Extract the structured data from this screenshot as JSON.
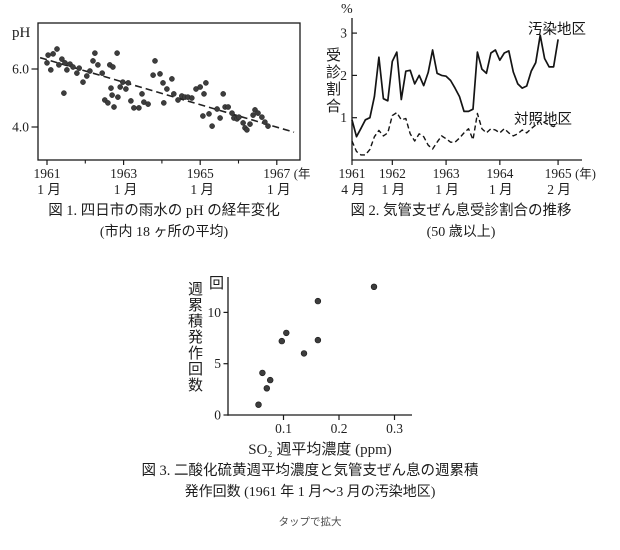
{
  "page": {
    "background": "#ffffff",
    "tap_hint": "タップで拡大"
  },
  "colors": {
    "ink": "#1a1a1a",
    "dot": "#3d3d3d",
    "axis": "#111111"
  },
  "chart_data": [
    {
      "id": "fig1",
      "type": "scatter",
      "title": "図 1.  四日市の雨水の pH の経年変化",
      "subtitle": "(市内 18 ヶ所の平均)",
      "ylabel": "pH",
      "frame": "box",
      "xlim": [
        1960.8,
        1967.6
      ],
      "ylim": [
        2.9,
        7.45
      ],
      "yticks": [
        {
          "v": 6.0,
          "label": "6.0"
        },
        {
          "v": 4.0,
          "label": "4.0"
        }
      ],
      "xticks_major": [
        {
          "v": 1961,
          "year": "1961",
          "month": "1 月",
          "suffix": ""
        },
        {
          "v": 1963,
          "year": "1963",
          "month": "1 月",
          "suffix": ""
        },
        {
          "v": 1965,
          "year": "1965",
          "month": "1 月",
          "suffix": ""
        },
        {
          "v": 1967,
          "year": "1967",
          "month": "1 月",
          "suffix": "(年)"
        }
      ],
      "xticks_minor": [
        1962,
        1964,
        1966
      ],
      "trendline": {
        "x1": 1960.82,
        "y1": 6.39,
        "x2": 1967.45,
        "y2": 3.82,
        "style": "dashed"
      },
      "points": [
        [
          1961.0,
          6.21
        ],
        [
          1961.03,
          6.48
        ],
        [
          1961.1,
          5.97
        ],
        [
          1961.16,
          6.52
        ],
        [
          1961.26,
          6.69
        ],
        [
          1961.31,
          6.14
        ],
        [
          1961.39,
          6.34
        ],
        [
          1961.44,
          5.17
        ],
        [
          1961.47,
          6.21
        ],
        [
          1961.52,
          5.97
        ],
        [
          1961.6,
          6.17
        ],
        [
          1961.68,
          6.07
        ],
        [
          1961.78,
          5.86
        ],
        [
          1961.84,
          6.03
        ],
        [
          1961.94,
          5.55
        ],
        [
          1962.04,
          5.76
        ],
        [
          1962.12,
          5.93
        ],
        [
          1962.2,
          6.28
        ],
        [
          1962.25,
          6.55
        ],
        [
          1962.33,
          6.14
        ],
        [
          1962.44,
          5.86
        ],
        [
          1962.51,
          4.93
        ],
        [
          1962.59,
          4.83
        ],
        [
          1962.64,
          6.14
        ],
        [
          1962.67,
          5.34
        ],
        [
          1962.7,
          5.1
        ],
        [
          1962.72,
          6.07
        ],
        [
          1962.75,
          4.69
        ],
        [
          1962.83,
          6.55
        ],
        [
          1962.85,
          5.03
        ],
        [
          1962.91,
          5.38
        ],
        [
          1962.98,
          5.55
        ],
        [
          1963.06,
          5.31
        ],
        [
          1963.12,
          5.52
        ],
        [
          1963.19,
          4.9
        ],
        [
          1963.27,
          4.66
        ],
        [
          1963.4,
          4.66
        ],
        [
          1963.48,
          5.14
        ],
        [
          1963.53,
          4.86
        ],
        [
          1963.64,
          4.79
        ],
        [
          1963.77,
          5.79
        ],
        [
          1963.82,
          6.28
        ],
        [
          1963.95,
          5.83
        ],
        [
          1964.03,
          5.52
        ],
        [
          1964.05,
          4.83
        ],
        [
          1964.13,
          5.31
        ],
        [
          1964.26,
          5.66
        ],
        [
          1964.31,
          5.14
        ],
        [
          1964.42,
          4.93
        ],
        [
          1964.52,
          5.07
        ],
        [
          1964.6,
          5.03
        ],
        [
          1964.68,
          5.03
        ],
        [
          1964.78,
          5.0
        ],
        [
          1964.89,
          5.31
        ],
        [
          1965.0,
          5.38
        ],
        [
          1965.07,
          4.38
        ],
        [
          1965.1,
          5.14
        ],
        [
          1965.15,
          5.52
        ],
        [
          1965.23,
          4.45
        ],
        [
          1965.31,
          4.03
        ],
        [
          1965.44,
          4.62
        ],
        [
          1965.52,
          4.31
        ],
        [
          1965.6,
          5.14
        ],
        [
          1965.65,
          4.69
        ],
        [
          1965.73,
          4.69
        ],
        [
          1965.83,
          4.48
        ],
        [
          1965.88,
          4.31
        ],
        [
          1965.96,
          4.28
        ],
        [
          1966.01,
          4.34
        ],
        [
          1966.12,
          4.14
        ],
        [
          1966.17,
          3.97
        ],
        [
          1966.22,
          3.9
        ],
        [
          1966.3,
          4.1
        ],
        [
          1966.38,
          4.41
        ],
        [
          1966.43,
          4.59
        ],
        [
          1966.51,
          4.48
        ],
        [
          1966.61,
          4.34
        ],
        [
          1966.69,
          4.17
        ],
        [
          1966.77,
          4.03
        ]
      ]
    },
    {
      "id": "fig2",
      "type": "line",
      "title": "図 2.  気管支ぜん息受診割合の推移",
      "subtitle": "(50 歳以上)",
      "unit_top": "%",
      "ylabel_vertical": "受診割合",
      "ylim": [
        0,
        3.3
      ],
      "yticks": [
        {
          "v": 1,
          "label": "1"
        },
        {
          "v": 2,
          "label": "2"
        },
        {
          "v": 3,
          "label": "3"
        }
      ],
      "x_start": "1961-04",
      "xticks": [
        {
          "m": 0,
          "year": "1961",
          "month": "4 月",
          "suffix": ""
        },
        {
          "m": 9,
          "year": "1962",
          "month": "1 月",
          "suffix": ""
        },
        {
          "m": 21,
          "year": "1963",
          "month": "1 月",
          "suffix": ""
        },
        {
          "m": 33,
          "year": "1964",
          "month": "1 月",
          "suffix": ""
        },
        {
          "m": 46,
          "year": "1965",
          "month": "2 月",
          "suffix": "(年)"
        }
      ],
      "series": [
        {
          "name": "汚染地区",
          "style": "solid",
          "values": [
            0.95,
            0.55,
            0.75,
            0.95,
            1.0,
            1.5,
            2.43,
            1.45,
            1.4,
            2.33,
            2.55,
            1.43,
            2.1,
            2.12,
            1.8,
            2.0,
            1.76,
            2.07,
            2.6,
            2.05,
            2.0,
            1.98,
            1.88,
            1.7,
            1.5,
            1.15,
            1.15,
            1.2,
            2.55,
            2.15,
            2.05,
            2.53,
            2.6,
            2.36,
            2.53,
            2.58,
            2.08,
            1.8,
            1.7,
            1.75,
            2.1,
            2.3,
            2.95,
            2.4,
            2.2,
            2.2,
            2.85
          ]
        },
        {
          "name": "対照地区",
          "style": "dashed",
          "values": [
            0.45,
            0.2,
            0.12,
            0.12,
            0.25,
            0.55,
            0.7,
            0.57,
            0.64,
            1.05,
            1.12,
            0.95,
            0.98,
            0.62,
            0.45,
            0.62,
            0.55,
            0.35,
            0.26,
            0.42,
            0.57,
            0.5,
            0.42,
            0.42,
            0.52,
            0.64,
            0.74,
            0.48,
            1.1,
            0.74,
            0.64,
            0.74,
            0.71,
            0.64,
            0.74,
            0.64,
            0.57,
            0.62,
            0.71,
            0.64,
            0.74,
            0.83,
            0.95,
            0.88,
            0.83,
            0.79,
            0.86
          ]
        }
      ]
    },
    {
      "id": "fig3",
      "type": "scatter",
      "title": "図 3.  二酸化硫黄週平均濃度と気管支ぜん息の週累積",
      "subtitle": "発作回数 (1961 年 1 月～3 月の汚染地区)",
      "unit_top": "回",
      "ylabel_vertical": "週累積発作回数",
      "xlabel": "SO₂ 週平均濃度 (ppm)",
      "xlim": [
        0,
        0.33
      ],
      "ylim": [
        0,
        13.5
      ],
      "yticks": [
        {
          "v": 0,
          "label": "0"
        },
        {
          "v": 5,
          "label": "5"
        },
        {
          "v": 10,
          "label": "10"
        }
      ],
      "xticks": [
        {
          "v": 0.1,
          "label": "0.1"
        },
        {
          "v": 0.2,
          "label": "0.2"
        },
        {
          "v": 0.3,
          "label": "0.3"
        }
      ],
      "points": [
        [
          0.055,
          1.0
        ],
        [
          0.062,
          4.1
        ],
        [
          0.07,
          2.6
        ],
        [
          0.076,
          3.4
        ],
        [
          0.097,
          7.2
        ],
        [
          0.105,
          8.0
        ],
        [
          0.137,
          6.0
        ],
        [
          0.162,
          7.3
        ],
        [
          0.162,
          11.1
        ],
        [
          0.263,
          12.5
        ]
      ]
    }
  ]
}
